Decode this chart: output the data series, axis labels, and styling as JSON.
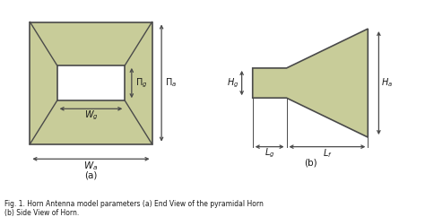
{
  "fill_color": "#c8cc99",
  "edge_color": "#4a4a4a",
  "text_color": "#1a1a1a",
  "caption": "Fig. 1. Horn Antenna model parameters (a) End View of the pyramidal Horn\n(b) Side View of Horn.",
  "label_a": "(a)",
  "label_b": "(b)"
}
